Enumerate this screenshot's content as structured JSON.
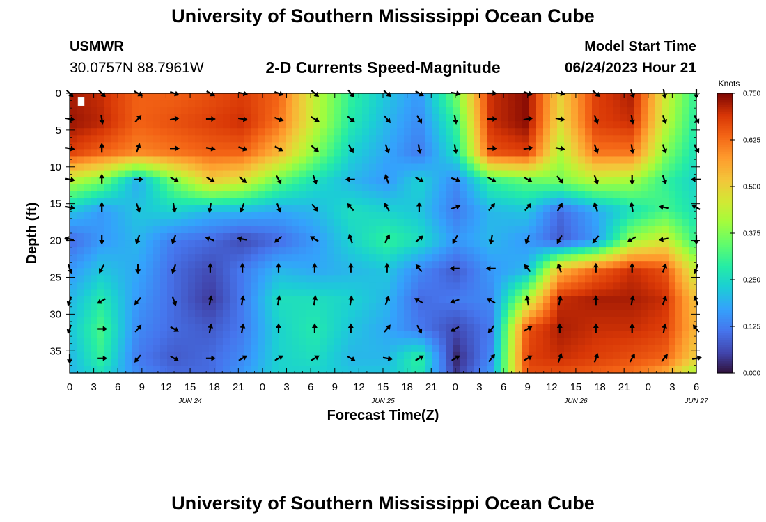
{
  "header": {
    "title": "University of Southern Mississippi Ocean Cube",
    "station": "USMWR",
    "coords": "30.0757N  88.7961W",
    "subtitle": "2-D Currents Speed-Magnitude",
    "model_start_label": "Model Start Time",
    "model_start_value": "06/24/2023 Hour 21"
  },
  "footer": {
    "title": "University of Southern Mississippi Ocean Cube"
  },
  "chart_data": {
    "type": "heatmap",
    "xlabel": "Forecast Time(Z)",
    "ylabel": "Depth (ft)",
    "x_ticks": [
      "0",
      "3",
      "6",
      "9",
      "12",
      "15",
      "18",
      "21",
      "0",
      "3",
      "6",
      "9",
      "12",
      "15",
      "18",
      "21",
      "0",
      "3",
      "6",
      "9",
      "12",
      "15",
      "18",
      "21",
      "0",
      "3",
      "6"
    ],
    "date_labels": [
      {
        "label": "JUN 24",
        "hour": 15
      },
      {
        "label": "JUN 25",
        "hour": 39
      },
      {
        "label": "JUN 26",
        "hour": 63
      },
      {
        "label": "JUN 27",
        "hour": 78
      }
    ],
    "xlim_hours": [
      0,
      78
    ],
    "y_ticks": [
      0,
      5,
      10,
      15,
      20,
      25,
      30,
      35
    ],
    "ylim": [
      0,
      38
    ],
    "y_inverted": true,
    "colorbar": {
      "label": "Knots",
      "ticks": [
        "0.000",
        "0.125",
        "0.250",
        "0.375",
        "0.500",
        "0.625",
        "0.750"
      ],
      "range": [
        0,
        0.75
      ]
    },
    "grid": false,
    "speed_knots_hours": [
      0,
      4,
      8.5,
      13,
      17.5,
      21.5,
      26,
      30.5,
      35,
      39.5,
      43.5,
      48,
      52.5,
      57,
      61,
      65.5,
      70,
      74,
      78
    ],
    "speed_knots_depths": [
      0,
      4,
      8,
      12,
      16,
      20,
      24,
      28,
      32,
      36,
      38
    ],
    "speed_knots": [
      [
        0.72,
        0.7,
        0.64,
        0.64,
        0.66,
        0.68,
        0.64,
        0.44,
        0.3,
        0.22,
        0.16,
        0.36,
        0.7,
        0.74,
        0.5,
        0.68,
        0.72,
        0.46,
        0.3
      ],
      [
        0.73,
        0.71,
        0.64,
        0.66,
        0.68,
        0.7,
        0.62,
        0.44,
        0.28,
        0.2,
        0.14,
        0.3,
        0.7,
        0.74,
        0.48,
        0.68,
        0.7,
        0.44,
        0.28
      ],
      [
        0.68,
        0.64,
        0.6,
        0.62,
        0.64,
        0.64,
        0.54,
        0.38,
        0.24,
        0.18,
        0.12,
        0.26,
        0.66,
        0.68,
        0.42,
        0.62,
        0.62,
        0.38,
        0.26
      ],
      [
        0.42,
        0.36,
        0.18,
        0.36,
        0.5,
        0.46,
        0.34,
        0.26,
        0.2,
        0.16,
        0.24,
        0.14,
        0.3,
        0.34,
        0.36,
        0.42,
        0.4,
        0.3,
        0.24
      ],
      [
        0.22,
        0.16,
        0.22,
        0.24,
        0.2,
        0.2,
        0.18,
        0.2,
        0.26,
        0.24,
        0.22,
        0.12,
        0.2,
        0.22,
        0.1,
        0.18,
        0.26,
        0.32,
        0.26
      ],
      [
        0.1,
        0.16,
        0.2,
        0.12,
        0.1,
        0.06,
        0.1,
        0.16,
        0.24,
        0.3,
        0.26,
        0.16,
        0.2,
        0.16,
        0.08,
        0.16,
        0.4,
        0.46,
        0.3
      ],
      [
        0.16,
        0.22,
        0.18,
        0.1,
        0.06,
        0.12,
        0.2,
        0.18,
        0.2,
        0.22,
        0.14,
        0.08,
        0.16,
        0.2,
        0.54,
        0.64,
        0.7,
        0.66,
        0.44
      ],
      [
        0.2,
        0.28,
        0.16,
        0.1,
        0.04,
        0.12,
        0.26,
        0.26,
        0.24,
        0.2,
        0.1,
        0.12,
        0.14,
        0.42,
        0.7,
        0.72,
        0.72,
        0.7,
        0.52
      ],
      [
        0.22,
        0.32,
        0.14,
        0.1,
        0.08,
        0.12,
        0.24,
        0.28,
        0.22,
        0.18,
        0.12,
        0.06,
        0.12,
        0.66,
        0.72,
        0.7,
        0.7,
        0.68,
        0.54
      ],
      [
        0.2,
        0.3,
        0.12,
        0.08,
        0.1,
        0.14,
        0.24,
        0.26,
        0.2,
        0.2,
        0.3,
        0.02,
        0.14,
        0.68,
        0.7,
        0.68,
        0.66,
        0.64,
        0.5
      ],
      [
        0.2,
        0.26,
        0.14,
        0.1,
        0.1,
        0.16,
        0.24,
        0.24,
        0.22,
        0.22,
        0.28,
        0.04,
        0.16,
        0.66,
        0.66,
        0.64,
        0.62,
        0.56,
        0.4
      ]
    ],
    "vector_hours": [
      0,
      4,
      8.5,
      13,
      17.5,
      21.5,
      26,
      30.5,
      35,
      39.5,
      43.5,
      48,
      52.5,
      57,
      61,
      65.5,
      70,
      74,
      78
    ],
    "vector_depths": [
      0,
      3.5,
      7.5,
      11.7,
      15.5,
      19.8,
      23.8,
      28.2,
      32,
      36
    ],
    "vector_dir_deg": [
      [
        135,
        135,
        120,
        110,
        120,
        100,
        110,
        130,
        140,
        130,
        120,
        100,
        90,
        110,
        100,
        130,
        160,
        170,
        180
      ],
      [
        100,
        170,
        40,
        80,
        90,
        100,
        110,
        120,
        130,
        140,
        150,
        170,
        90,
        80,
        100,
        160,
        170,
        160,
        150
      ],
      [
        100,
        0,
        20,
        90,
        100,
        110,
        120,
        130,
        150,
        160,
        170,
        170,
        90,
        80,
        100,
        160,
        170,
        160,
        150
      ],
      [
        100,
        0,
        90,
        120,
        120,
        130,
        150,
        160,
        270,
        340,
        120,
        110,
        120,
        120,
        140,
        160,
        180,
        160,
        270
      ],
      [
        100,
        0,
        160,
        170,
        190,
        200,
        160,
        140,
        320,
        330,
        0,
        70,
        40,
        40,
        30,
        340,
        350,
        280,
        300
      ],
      [
        280,
        180,
        200,
        200,
        290,
        280,
        230,
        300,
        340,
        30,
        50,
        210,
        190,
        200,
        210,
        220,
        240,
        260,
        180
      ],
      [
        160,
        210,
        180,
        200,
        0,
        0,
        0,
        0,
        0,
        0,
        320,
        270,
        270,
        320,
        340,
        0,
        0,
        20,
        200
      ],
      [
        200,
        240,
        220,
        160,
        10,
        10,
        10,
        10,
        10,
        20,
        300,
        250,
        300,
        350,
        10,
        0,
        10,
        20,
        340
      ],
      [
        200,
        90,
        40,
        120,
        10,
        10,
        0,
        0,
        0,
        40,
        150,
        240,
        220,
        60,
        0,
        0,
        0,
        10,
        320
      ],
      [
        180,
        90,
        220,
        120,
        90,
        60,
        60,
        60,
        120,
        100,
        60,
        60,
        40,
        60,
        20,
        20,
        30,
        40,
        80
      ]
    ]
  }
}
